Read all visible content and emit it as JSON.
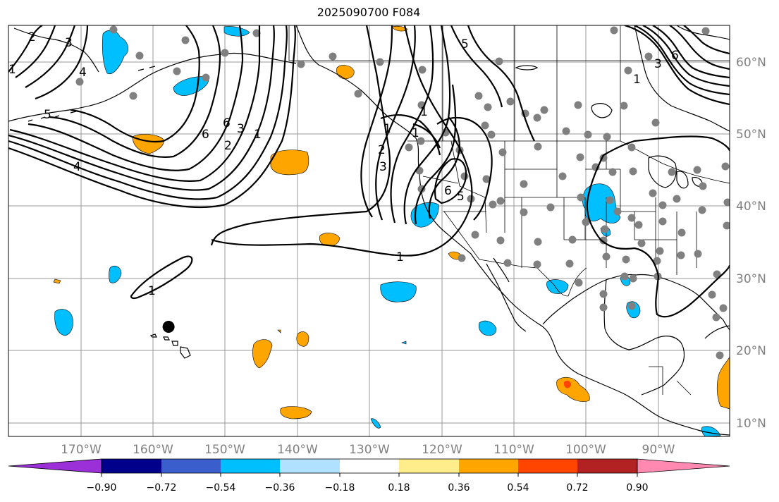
{
  "title": "2025090700 F084",
  "map": {
    "lon_range": [
      -180,
      -80
    ],
    "lat_range": [
      8,
      65
    ],
    "lon_ticks": [
      "170°W",
      "160°W",
      "150°W",
      "140°W",
      "130°W",
      "120°W",
      "110°W",
      "100°W",
      "90°W"
    ],
    "lat_ticks": [
      "10°N",
      "20°N",
      "30°N",
      "40°N",
      "50°N",
      "60°N"
    ],
    "contour_labels": [
      "2",
      "3",
      "1",
      "4",
      "5",
      "6",
      "2",
      "3",
      "1",
      "6",
      "5",
      "4",
      "1",
      "2",
      "3",
      "1",
      "1",
      "5",
      "6",
      "1",
      "1"
    ],
    "station_color": "#808080",
    "marker": {
      "lon": -157.8,
      "lat": 23.2,
      "color": "#000000"
    }
  },
  "colorbar": {
    "ticks": [
      "−0.90",
      "−0.72",
      "−0.54",
      "−0.36",
      "−0.18",
      "0.18",
      "0.36",
      "0.54",
      "0.72",
      "0.90"
    ],
    "colors": [
      "#9b30d9",
      "#00008b",
      "#3a5fcd",
      "#00bfff",
      "#b0e2ff",
      "#ffffff",
      "#ffec8b",
      "#ffa500",
      "#ff4500",
      "#b22222",
      "#ff89b0"
    ]
  },
  "colors": {
    "negative": "#00bfff",
    "positive": "#ffa500",
    "strong_positive": "#ff4500"
  }
}
